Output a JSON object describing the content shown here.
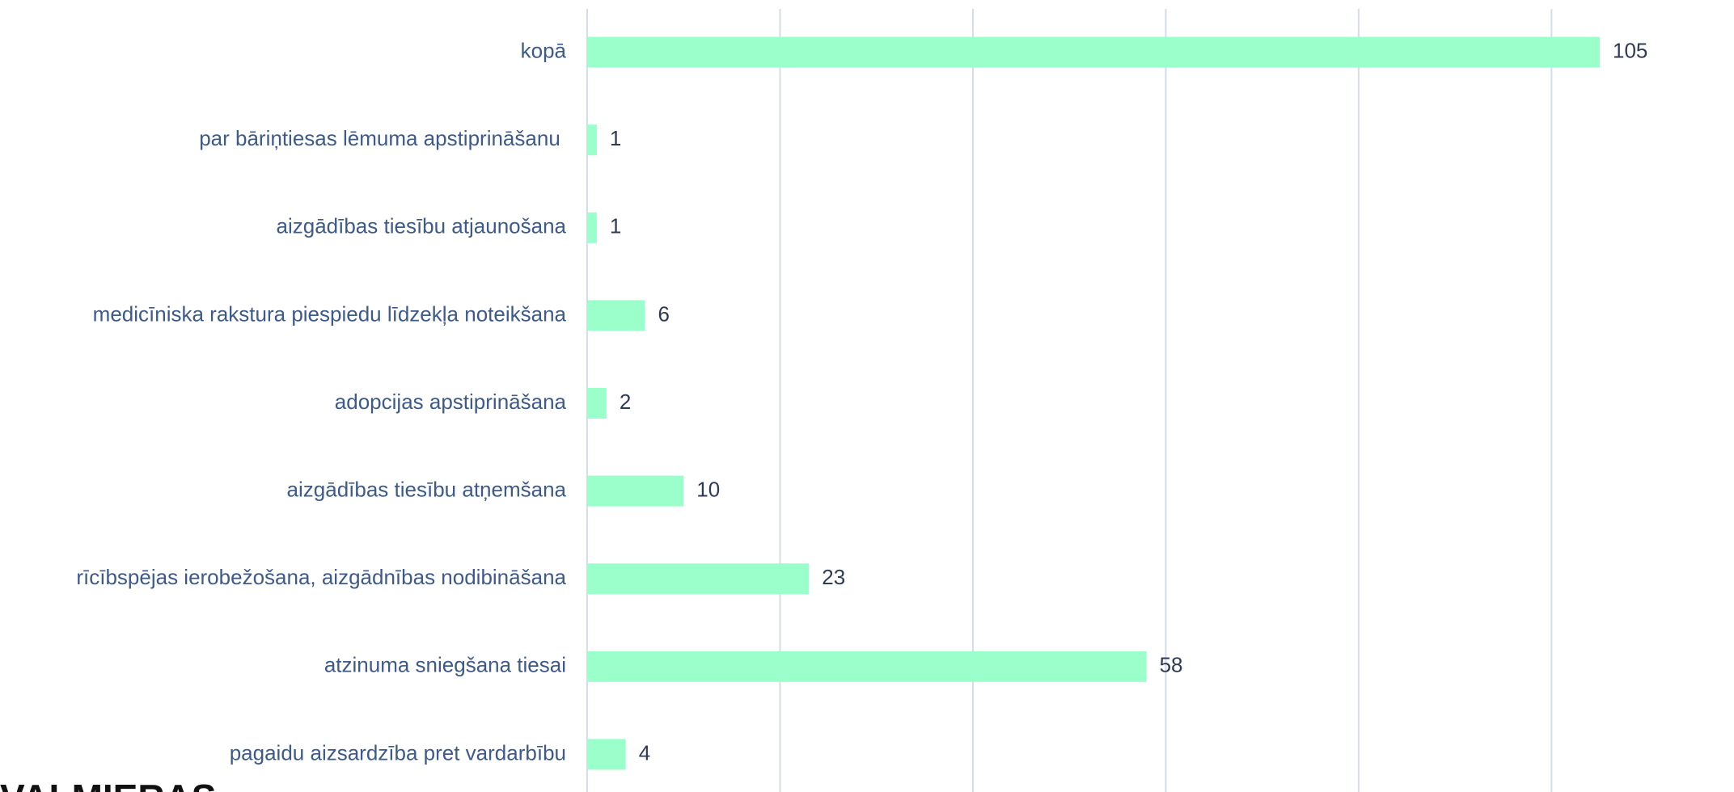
{
  "chart_data": {
    "type": "bar",
    "orientation": "horizontal",
    "categories": [
      "kopā",
      "par bāriņtiesas lēmuma apstiprināšanu ",
      "aizgādības tiesību atjaunošana",
      "medicīniska rakstura piespiedu līdzekļa noteikšana",
      "adopcijas apstiprināšana",
      "aizgādības tiesību atņemšana",
      "rīcībspējas ierobežošana, aizgādnības nodibināšana",
      "atzinuma sniegšana tiesai",
      "pagaidu aizsardzība pret vardarbību"
    ],
    "values": [
      105,
      1,
      1,
      6,
      2,
      10,
      23,
      58,
      4
    ],
    "color": "#9bffcb",
    "xlim": [
      0,
      118
    ],
    "xticks": [
      0,
      20,
      40,
      60,
      80,
      100
    ],
    "grid": true
  },
  "logo": "VALMIERAS"
}
